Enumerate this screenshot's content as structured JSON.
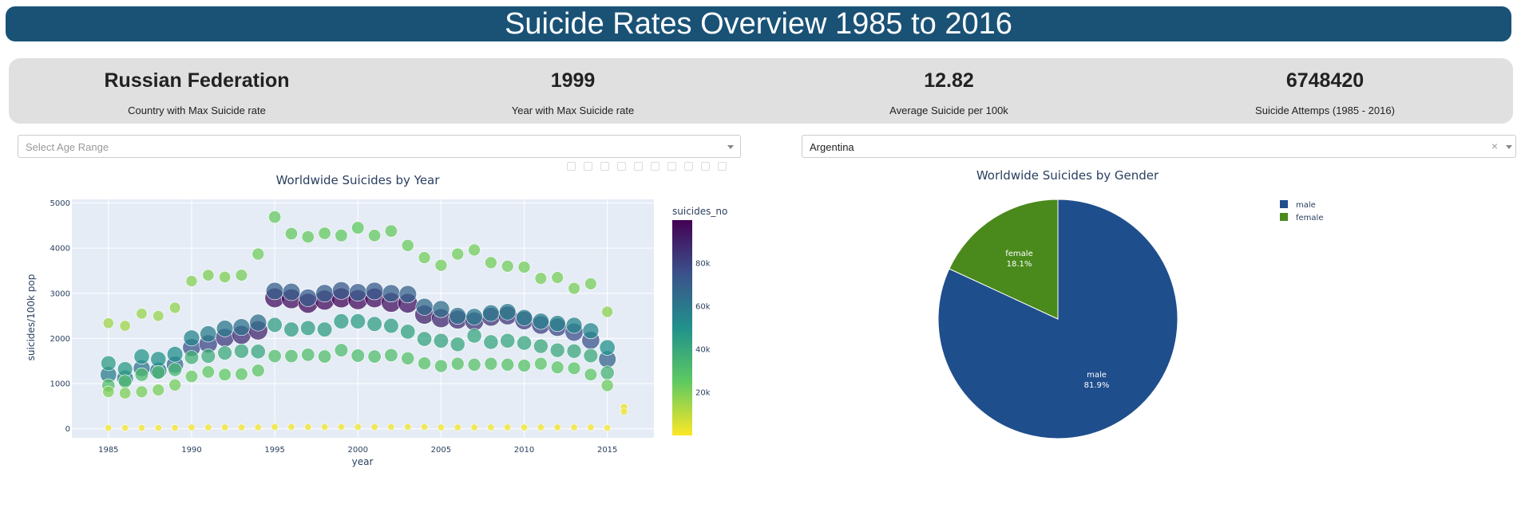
{
  "header": {
    "title": "Suicide Rates Overview 1985 to 2016"
  },
  "stats": [
    {
      "value": "Russian Federation",
      "label": "Country with Max Suicide rate"
    },
    {
      "value": "1999",
      "label": "Year with Max Suicide rate"
    },
    {
      "value": "12.82",
      "label": "Average Suicide per 100k"
    },
    {
      "value": "6748420",
      "label": "Suicide Attemps (1985 - 2016)"
    }
  ],
  "filters": {
    "age": {
      "placeholder": "Select Age Range",
      "value": ""
    },
    "country": {
      "value": "Argentina",
      "clear_label": "×"
    }
  },
  "chart_data": [
    {
      "type": "scatter",
      "title": "Worldwide Suicides by Year",
      "xlabel": "year",
      "ylabel": "suicides/100k pop",
      "xlim": [
        1982.8,
        2017.8
      ],
      "ylim": [
        -200,
        5080
      ],
      "xticks": [
        1985,
        1990,
        1995,
        2000,
        2005,
        2010,
        2015
      ],
      "yticks": [
        0,
        1000,
        2000,
        3000,
        4000,
        5000
      ],
      "colorscale": "Viridis (reversed)",
      "colorbar": {
        "title": "suicides_no",
        "range": [
          0,
          100000
        ],
        "ticks": [
          "20k",
          "40k",
          "60k",
          "80k"
        ],
        "tick_values": [
          20000,
          40000,
          60000,
          80000
        ]
      },
      "series": [
        {
          "x": [
            1985,
            1986,
            1987,
            1988,
            1989,
            1990,
            1991,
            1992,
            1993,
            1994,
            1995,
            1996,
            1997,
            1998,
            1999,
            2000,
            2001,
            2002,
            2003,
            2004,
            2005,
            2006,
            2007,
            2008,
            2009,
            2010,
            2011,
            2012,
            2013,
            2014,
            2015
          ],
          "y": [
            2340,
            2280,
            2550,
            2500,
            2680,
            3270,
            3400,
            3360,
            3400,
            3870,
            4690,
            4320,
            4250,
            4330,
            4280,
            4450,
            4280,
            4380,
            4060,
            3790,
            3620,
            3870,
            3960,
            3680,
            3600,
            3580,
            3330,
            3350,
            3110,
            3210,
            2590
          ],
          "suicides_no": [
            15000,
            15000,
            16000,
            16000,
            17000,
            19000,
            20000,
            20000,
            21000,
            22000,
            24000,
            24000,
            24000,
            24000,
            25000,
            25000,
            24000,
            24000,
            23000,
            22000,
            22000,
            22000,
            22000,
            22000,
            22000,
            22000,
            21000,
            21000,
            21000,
            21000,
            18000
          ]
        },
        {
          "x": [
            1985,
            1986,
            1987,
            1988,
            1989,
            1990,
            1991,
            1992,
            1993,
            1994,
            1995,
            1996,
            1997,
            1998,
            1999,
            2000,
            2001,
            2002,
            2003,
            2004,
            2005,
            2006,
            2007,
            2008,
            2009,
            2010,
            2011,
            2012,
            2013,
            2014,
            2015
          ],
          "y": [
            1200,
            1120,
            1340,
            1290,
            1420,
            1800,
            1880,
            2020,
            2080,
            2180,
            2900,
            2880,
            2780,
            2850,
            2900,
            2860,
            2900,
            2800,
            2780,
            2530,
            2450,
            2420,
            2380,
            2480,
            2510,
            2400,
            2300,
            2250,
            2140,
            1960,
            1540
          ],
          "suicides_no": [
            58000,
            59000,
            62000,
            63000,
            65000,
            74000,
            78000,
            82000,
            86000,
            89000,
            96000,
            96000,
            97000,
            97000,
            98000,
            97000,
            96000,
            95000,
            94000,
            90000,
            88000,
            86000,
            84000,
            84000,
            83000,
            82000,
            80000,
            78000,
            76000,
            74000,
            68000
          ]
        },
        {
          "x": [
            1985,
            1986,
            1987,
            1988,
            1989,
            1990,
            1991,
            1992,
            1993,
            1994,
            1995,
            1996,
            1997,
            1998,
            1999,
            2000,
            2001,
            2002,
            2003,
            2004,
            2005,
            2006,
            2007,
            2008,
            2009,
            2010,
            2011,
            2012,
            2013,
            2014,
            2015
          ],
          "y": [
            1450,
            1320,
            1600,
            1540,
            1650,
            2010,
            2100,
            2220,
            2250,
            2350,
            3050,
            3030,
            2900,
            3000,
            3060,
            3020,
            3050,
            3000,
            2980,
            2700,
            2650,
            2500,
            2480,
            2560,
            2590,
            2460,
            2380,
            2330,
            2290,
            2170,
            1800
          ],
          "suicides_no": [
            45000,
            46000,
            48000,
            49000,
            51000,
            55000,
            58000,
            60000,
            62000,
            64000,
            70000,
            70000,
            71000,
            71000,
            72000,
            71000,
            71000,
            70000,
            69000,
            66000,
            64000,
            62000,
            60000,
            60000,
            59000,
            58000,
            57000,
            56000,
            55000,
            54000,
            50000
          ]
        },
        {
          "x": [
            1985,
            1986,
            1987,
            1988,
            1989,
            1990,
            1991,
            1992,
            1993,
            1994,
            1995,
            1996,
            1997,
            1998,
            1999,
            2000,
            2001,
            2002,
            2003,
            2004,
            2005,
            2006,
            2007,
            2008,
            2009,
            2010,
            2011,
            2012,
            2013,
            2014,
            2015
          ],
          "y": [
            960,
            1050,
            1200,
            1250,
            1310,
            1580,
            1610,
            1680,
            1720,
            1710,
            2300,
            2200,
            2230,
            2200,
            2380,
            2380,
            2320,
            2280,
            2150,
            1990,
            1950,
            1870,
            2060,
            1920,
            1950,
            1900,
            1830,
            1740,
            1720,
            1620,
            1240
          ],
          "suicides_no": [
            30000,
            31000,
            32000,
            33000,
            34000,
            36000,
            38000,
            39000,
            40000,
            41000,
            44000,
            44000,
            44000,
            44000,
            45000,
            45000,
            44000,
            44000,
            43000,
            42000,
            42000,
            41000,
            41000,
            41000,
            41000,
            41000,
            40000,
            40000,
            40000,
            39000,
            35000
          ]
        },
        {
          "x": [
            1985,
            1986,
            1987,
            1988,
            1989,
            1990,
            1991,
            1992,
            1993,
            1994,
            1995,
            1996,
            1997,
            1998,
            1999,
            2000,
            2001,
            2002,
            2003,
            2004,
            2005,
            2006,
            2007,
            2008,
            2009,
            2010,
            2011,
            2012,
            2013,
            2014,
            2015
          ],
          "y": [
            820,
            790,
            820,
            860,
            970,
            1160,
            1260,
            1200,
            1210,
            1290,
            1610,
            1610,
            1640,
            1600,
            1740,
            1620,
            1600,
            1630,
            1560,
            1450,
            1390,
            1440,
            1420,
            1440,
            1420,
            1400,
            1440,
            1360,
            1340,
            1200,
            960
          ],
          "suicides_no": [
            20000,
            20000,
            21000,
            21000,
            22000,
            24000,
            25000,
            25000,
            26000,
            27000,
            30000,
            30000,
            30000,
            30000,
            31000,
            31000,
            30000,
            30000,
            29000,
            28000,
            28000,
            28000,
            28000,
            28000,
            28000,
            28000,
            27000,
            27000,
            27000,
            26000,
            23000
          ]
        },
        {
          "x": [
            1985,
            1986,
            1987,
            1988,
            1989,
            1990,
            1991,
            1992,
            1993,
            1994,
            1995,
            1996,
            1997,
            1998,
            1999,
            2000,
            2001,
            2002,
            2003,
            2004,
            2005,
            2006,
            2007,
            2008,
            2009,
            2010,
            2011,
            2012,
            2013,
            2014,
            2015,
            2016,
            2016
          ],
          "y": [
            20,
            20,
            20,
            20,
            20,
            30,
            30,
            30,
            30,
            30,
            40,
            40,
            40,
            40,
            40,
            40,
            40,
            40,
            40,
            40,
            30,
            30,
            30,
            30,
            30,
            30,
            30,
            30,
            30,
            30,
            20,
            480,
            380
          ],
          "suicides_no": [
            1500,
            1500,
            1500,
            1500,
            1500,
            1800,
            1800,
            1800,
            1800,
            1800,
            2000,
            2000,
            2000,
            2000,
            2000,
            2000,
            2000,
            2000,
            2000,
            2000,
            1800,
            1800,
            1800,
            1800,
            1800,
            1800,
            1800,
            1800,
            1800,
            1800,
            1500,
            3000,
            2500
          ]
        }
      ]
    },
    {
      "type": "pie",
      "title": "Worldwide Suicides by Gender",
      "labels": [
        "male",
        "female"
      ],
      "values": [
        81.9,
        18.1
      ],
      "text": [
        "81.9%",
        "18.1%"
      ],
      "colors": [
        "#1f4e8c",
        "#4a8a1c"
      ],
      "legend": "top-right"
    }
  ]
}
